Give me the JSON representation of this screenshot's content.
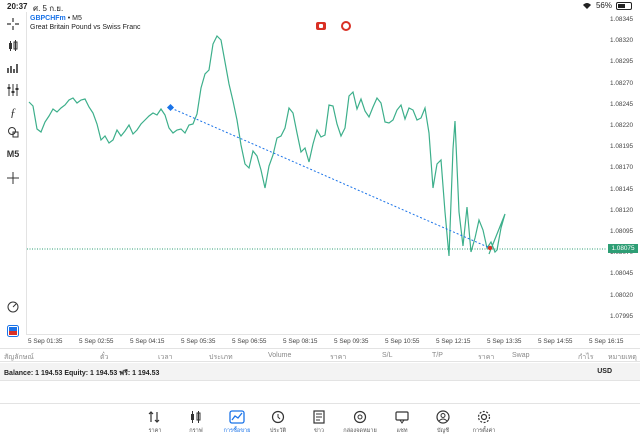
{
  "status": {
    "time": "20:37",
    "date": "ศ. 5 ก.ย.",
    "battery": "56%"
  },
  "toolbar": {
    "timeframe": "M5"
  },
  "chart": {
    "symbol": "GBPCHFm",
    "separator": " • M5",
    "description": "Great Britain Pound vs Swiss Franc",
    "current_price": "1.08075",
    "line_color": "#3daf8b",
    "level_color": "#2e9e75",
    "trend_color": "#1a73e8",
    "y_ticks": [
      "1.08345",
      "1.08320",
      "1.08295",
      "1.08270",
      "1.08245",
      "1.08220",
      "1.08195",
      "1.08170",
      "1.08145",
      "1.08120",
      "1.08095",
      "1.08070",
      "1.08045",
      "1.08020",
      "1.07995"
    ],
    "x_ticks": [
      "5 Sep 01:35",
      "5 Sep 02:55",
      "5 Sep 04:15",
      "5 Sep 05:35",
      "5 Sep 06:55",
      "5 Sep 08:15",
      "5 Sep 09:35",
      "5 Sep 10:55",
      "5 Sep 12:15",
      "5 Sep 13:35",
      "5 Sep 14:55",
      "5 Sep 16:15"
    ]
  },
  "terminal": {
    "columns": [
      "สัญลักษณ์",
      "ตั๋ว",
      "เวลา",
      "ประเภท",
      "Volume",
      "ราคา",
      "S/L",
      "T/P",
      "ราคา",
      "Swap",
      "กำไร",
      "หมายเหตุ"
    ],
    "balance_line": "Balance: 1 194.53  Equity: 1 194.53  ฟรี: 1 194.53",
    "currency": "USD"
  },
  "tabs": [
    {
      "label": "ราคา",
      "icon": "quotes-icon"
    },
    {
      "label": "กราฟ",
      "icon": "chart-candles-icon"
    },
    {
      "label": "การซื้อขาย",
      "icon": "trade-icon",
      "active": true
    },
    {
      "label": "ประวัติ",
      "icon": "history-icon"
    },
    {
      "label": "ข่าว",
      "icon": "news-icon"
    },
    {
      "label": "กล่องจดหมาย",
      "icon": "mailbox-icon"
    },
    {
      "label": "แชท",
      "icon": "chat-icon"
    },
    {
      "label": "บัญชี",
      "icon": "account-icon"
    },
    {
      "label": "การตั้งค่า",
      "icon": "settings-icon"
    }
  ]
}
